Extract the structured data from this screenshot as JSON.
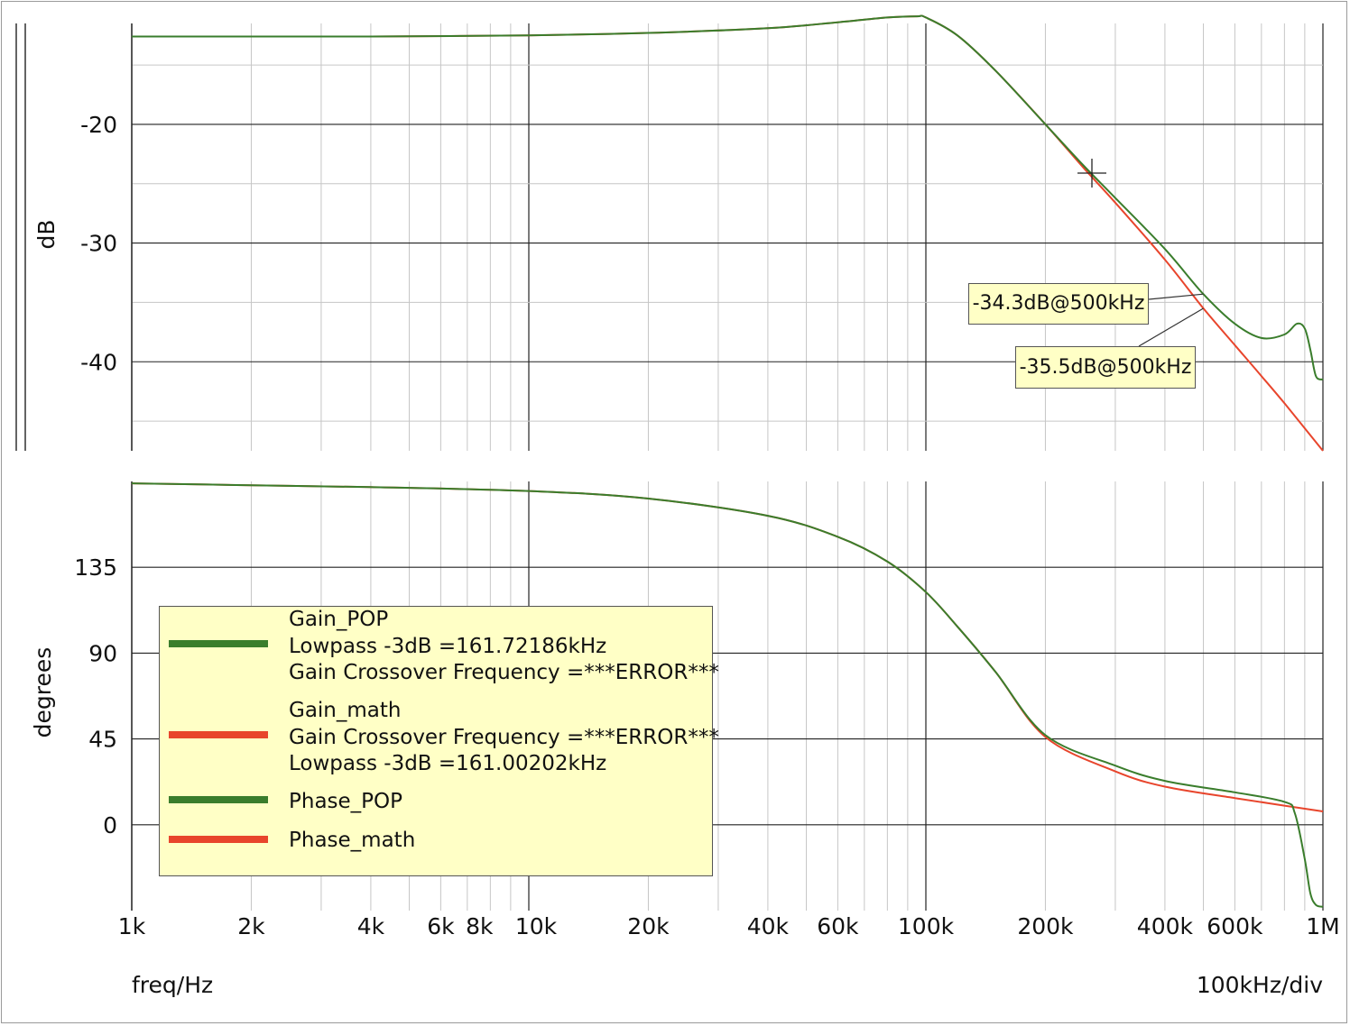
{
  "chart_data": [
    {
      "type": "line",
      "ylabel": "dB",
      "ylim": [
        -47.5,
        -11.5
      ],
      "yticks": [
        -20,
        -30,
        -40
      ],
      "xscale": "log",
      "xlim_hz": [
        1000,
        1000000
      ],
      "grid": true,
      "series": [
        {
          "name": "Gain_POP",
          "color": "#3a7d2c",
          "x": [
            1000,
            2000,
            4000,
            10000,
            20000,
            40000,
            60000,
            80000,
            95000,
            100000,
            120000,
            150000,
            200000,
            250000,
            300000,
            400000,
            500000,
            600000,
            700000,
            800000,
            860000,
            900000,
            930000,
            960000,
            1000000
          ],
          "y": [
            -12.6,
            -12.6,
            -12.6,
            -12.5,
            -12.3,
            -11.9,
            -11.4,
            -11.0,
            -10.9,
            -11.0,
            -12.5,
            -15.5,
            -20.0,
            -23.5,
            -26.2,
            -30.5,
            -34.3,
            -36.8,
            -38.0,
            -37.7,
            -36.8,
            -37.2,
            -39.0,
            -41.2,
            -41.5
          ]
        },
        {
          "name": "Gain_math",
          "color": "#e8452c",
          "x": [
            1000,
            2000,
            4000,
            10000,
            20000,
            40000,
            60000,
            80000,
            95000,
            100000,
            120000,
            150000,
            200000,
            250000,
            300000,
            400000,
            500000,
            600000,
            700000,
            800000,
            1000000
          ],
          "y": [
            -12.6,
            -12.6,
            -12.6,
            -12.5,
            -12.3,
            -11.9,
            -11.4,
            -11.0,
            -10.9,
            -11.0,
            -12.5,
            -15.5,
            -20.0,
            -23.7,
            -26.6,
            -31.4,
            -35.5,
            -38.6,
            -41.2,
            -43.5,
            -47.5
          ]
        }
      ],
      "annotations": [
        {
          "text": "-34.3dB@500kHz"
        },
        {
          "text": "-35.5dB@500kHz"
        }
      ]
    },
    {
      "type": "line",
      "ylabel": "degrees",
      "ylim": [
        -45,
        180
      ],
      "yticks": [
        135,
        90,
        45,
        0
      ],
      "xscale": "log",
      "xlim_hz": [
        1000,
        1000000
      ],
      "xticks": [
        "1k",
        "2k",
        "4k",
        "6k",
        "8k",
        "10k",
        "20k",
        "40k",
        "60k",
        "100k",
        "200k",
        "400k",
        "600k",
        "1M"
      ],
      "grid": true,
      "series": [
        {
          "name": "Phase_POP",
          "color": "#3a7d2c",
          "x": [
            1000,
            2000,
            4000,
            10000,
            20000,
            40000,
            60000,
            80000,
            100000,
            120000,
            150000,
            200000,
            300000,
            400000,
            600000,
            800000,
            850000,
            900000,
            930000,
            960000,
            1000000
          ],
          "y": [
            179,
            178,
            177,
            175,
            171,
            162,
            151,
            138,
            122,
            104,
            80,
            47,
            31,
            23,
            17,
            12,
            6,
            -18,
            -36,
            -42,
            -43
          ]
        },
        {
          "name": "Phase_math",
          "color": "#e8452c",
          "x": [
            1000,
            2000,
            4000,
            10000,
            20000,
            40000,
            60000,
            80000,
            100000,
            120000,
            150000,
            200000,
            300000,
            400000,
            600000,
            800000,
            1000000
          ],
          "y": [
            179,
            178,
            177,
            175,
            171,
            162,
            151,
            138,
            122,
            104,
            80,
            46,
            28,
            20,
            14,
            10,
            7
          ]
        }
      ]
    }
  ],
  "xlabel": "freq/Hz",
  "xscale_note": "100kHz/div",
  "legend": [
    {
      "swatch": "#3a7d2c",
      "lines": [
        "Gain_POP",
        "Lowpass -3dB =161.72186kHz",
        "Gain Crossover Frequency =***ERROR***"
      ]
    },
    {
      "swatch": "#e8452c",
      "lines": [
        "Gain_math",
        "Gain Crossover Frequency =***ERROR***",
        "Lowpass -3dB =161.00202kHz"
      ]
    },
    {
      "swatch": "#3a7d2c",
      "lines": [
        "Phase_POP"
      ]
    },
    {
      "swatch": "#e8452c",
      "lines": [
        "Phase_math"
      ]
    }
  ],
  "callouts": [
    "-34.3dB@500kHz",
    "-35.5dB@500kHz"
  ]
}
